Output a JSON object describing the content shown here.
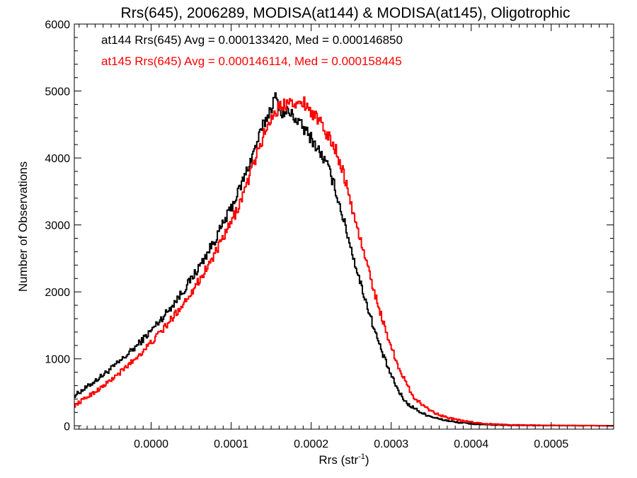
{
  "chart_data": {
    "type": "line",
    "title": "Rrs(645), 2006289, MODISA(at144) & MODISA(at145), Oligotrophic",
    "xlabel_base": "Rrs (str",
    "xlabel_sup": "-1",
    "xlabel_close": ")",
    "ylabel": "Number of Observations",
    "xlim": [
      -9.6e-05,
      0.000578
    ],
    "ylim": [
      -50,
      6000
    ],
    "x_ticks": [
      0.0,
      0.0001,
      0.0002,
      0.0003,
      0.0004,
      0.0005
    ],
    "x_tick_labels": [
      "0.0000",
      "0.0001",
      "0.0002",
      "0.0003",
      "0.0004",
      "0.0005"
    ],
    "y_ticks": [
      0,
      1000,
      2000,
      3000,
      4000,
      5000,
      6000
    ],
    "y_tick_labels": [
      "0",
      "1000",
      "2000",
      "3000",
      "4000",
      "5000",
      "6000"
    ],
    "grid": false,
    "legend_position": "top-left",
    "series": [
      {
        "name": "at144",
        "label": "at144 Rrs(645) Avg = 0.000133420, Med = 0.000146850",
        "color": "#000000",
        "x": [
          -9.6e-05,
          -8e-05,
          -6e-05,
          -4e-05,
          -2e-05,
          0.0,
          2e-05,
          4e-05,
          6e-05,
          8e-05,
          0.0001,
          0.00011,
          0.00012,
          0.00013,
          0.00014,
          0.00015,
          0.000155,
          0.00016,
          0.000165,
          0.00017,
          0.00018,
          0.00019,
          0.0002,
          0.00021,
          0.00022,
          0.00023,
          0.00024,
          0.00025,
          0.00026,
          0.00027,
          0.00028,
          0.00029,
          0.0003,
          0.00031,
          0.00032,
          0.00034,
          0.00036,
          0.00038,
          0.0004,
          0.00042,
          0.00045,
          0.0005,
          0.00055,
          0.000578
        ],
        "y": [
          450,
          580,
          760,
          950,
          1170,
          1420,
          1700,
          2010,
          2370,
          2780,
          3250,
          3520,
          3820,
          4150,
          4480,
          4750,
          4900,
          4780,
          4650,
          4700,
          4600,
          4450,
          4300,
          4100,
          3900,
          3550,
          3100,
          2650,
          2200,
          1800,
          1400,
          1050,
          750,
          500,
          330,
          180,
          100,
          55,
          30,
          15,
          8,
          4,
          2,
          0
        ]
      },
      {
        "name": "at145",
        "label": "at145 Rrs(645) Avg = 0.000146114, Med = 0.000158445",
        "color": "#ff0000",
        "x": [
          -9.6e-05,
          -8e-05,
          -6e-05,
          -4e-05,
          -2e-05,
          0.0,
          2e-05,
          4e-05,
          6e-05,
          8e-05,
          0.0001,
          0.00011,
          0.00012,
          0.00013,
          0.00014,
          0.00015,
          0.00016,
          0.00017,
          0.000175,
          0.00018,
          0.00019,
          0.0002,
          0.00021,
          0.00022,
          0.00023,
          0.00024,
          0.00025,
          0.00026,
          0.00027,
          0.00028,
          0.00029,
          0.0003,
          0.00031,
          0.00032,
          0.00033,
          0.00035,
          0.00037,
          0.00039,
          0.00041,
          0.00043,
          0.00046,
          0.0005,
          0.00055,
          0.000578
        ],
        "y": [
          300,
          430,
          590,
          780,
          1000,
          1240,
          1510,
          1820,
          2170,
          2570,
          3030,
          3300,
          3620,
          3980,
          4320,
          4600,
          4750,
          4820,
          4950,
          4750,
          4850,
          4700,
          4550,
          4350,
          4150,
          3800,
          3300,
          2850,
          2400,
          1960,
          1550,
          1180,
          860,
          600,
          400,
          220,
          120,
          70,
          40,
          22,
          12,
          6,
          3,
          0
        ]
      }
    ]
  }
}
